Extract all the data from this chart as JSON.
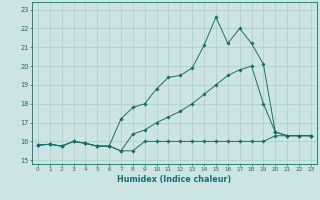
{
  "bg_color": "#cde4e4",
  "grid_color": "#aacece",
  "line_color": "#1a6e6a",
  "xlabel": "Humidex (Indice chaleur)",
  "xlim": [
    -0.5,
    23.5
  ],
  "ylim": [
    14.8,
    23.4
  ],
  "yticks": [
    15,
    16,
    17,
    18,
    19,
    20,
    21,
    22,
    23
  ],
  "xticks": [
    0,
    1,
    2,
    3,
    4,
    5,
    6,
    7,
    8,
    9,
    10,
    11,
    12,
    13,
    14,
    15,
    16,
    17,
    18,
    19,
    20,
    21,
    22,
    23
  ],
  "line1_x": [
    0,
    1,
    2,
    3,
    4,
    5,
    6,
    7,
    8,
    9,
    10,
    11,
    12,
    13,
    14,
    15,
    16,
    17,
    18,
    19,
    20,
    21,
    22,
    23
  ],
  "line1_y": [
    15.8,
    15.85,
    15.75,
    16.0,
    15.9,
    15.75,
    15.75,
    15.5,
    15.5,
    16.0,
    16.0,
    16.0,
    16.0,
    16.0,
    16.0,
    16.0,
    16.0,
    16.0,
    16.0,
    16.0,
    16.3,
    16.3,
    16.3,
    16.3
  ],
  "line2_x": [
    0,
    1,
    2,
    3,
    4,
    5,
    6,
    7,
    8,
    9,
    10,
    11,
    12,
    13,
    14,
    15,
    16,
    17,
    18,
    19,
    20,
    21,
    22,
    23
  ],
  "line2_y": [
    15.8,
    15.85,
    15.75,
    16.0,
    15.9,
    15.75,
    15.75,
    15.5,
    16.4,
    16.6,
    17.0,
    17.3,
    17.6,
    18.0,
    18.5,
    19.0,
    19.5,
    19.8,
    20.0,
    18.0,
    16.5,
    16.3,
    16.3,
    16.3
  ],
  "line3_x": [
    0,
    1,
    2,
    3,
    4,
    5,
    6,
    7,
    8,
    9,
    10,
    11,
    12,
    13,
    14,
    15,
    16,
    17,
    18,
    19,
    20,
    21,
    22,
    23
  ],
  "line3_y": [
    15.8,
    15.85,
    15.75,
    16.0,
    15.9,
    15.75,
    15.75,
    17.2,
    17.8,
    18.0,
    18.8,
    19.4,
    19.5,
    19.9,
    21.1,
    22.6,
    21.2,
    22.0,
    21.2,
    20.1,
    16.5,
    16.3,
    16.3,
    16.3
  ]
}
